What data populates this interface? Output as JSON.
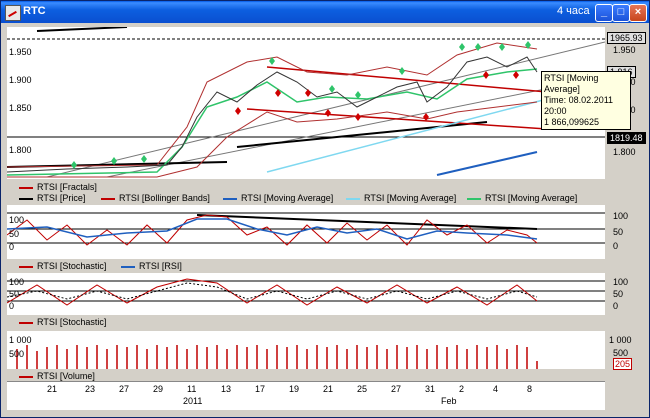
{
  "window": {
    "title": "RTC",
    "timeframe": "4 часа",
    "buttons": {
      "minimize": "_",
      "maximize": "□",
      "close": "×"
    }
  },
  "main_chart": {
    "price_scale": [
      "1.950",
      "1.900",
      "1.850",
      "1.800"
    ],
    "left_scale": [
      "1.950",
      "1.900",
      "1.850",
      "1.800"
    ],
    "tags": {
      "top": "1965.93",
      "bottom": "1819.48",
      "side": "1.916"
    },
    "tooltip": {
      "line1": "RTSI [Moving Average]",
      "line2": "Time: 08.02.2011 20:00",
      "line3": "1 866,099625"
    },
    "legend": [
      {
        "label": "RTSI [Fractals]",
        "color": "#c00000"
      },
      {
        "label": "RTSI [Price]",
        "color": "#000000"
      },
      {
        "label": "RTSI [Bollinger Bands]",
        "color": "#c00000"
      },
      {
        "label": "RTSI [Moving Average]",
        "color": "#1f5fbf"
      },
      {
        "label": "RTSI [Moving Average]",
        "color": "#7fd8f0"
      },
      {
        "label": "RTSI [Moving Average]",
        "color": "#2fc46a"
      }
    ]
  },
  "osc1": {
    "scale": [
      "100",
      "50",
      "0"
    ],
    "legend": [
      {
        "label": "RTSI [Stochastic]",
        "color": "#c00000"
      },
      {
        "label": "RTSI [RSI]",
        "color": "#1f5fbf"
      }
    ]
  },
  "osc2": {
    "scale": [
      "100",
      "50",
      "0"
    ],
    "legend": [
      {
        "label": "RTSI [Stochastic]",
        "color": "#c00000"
      }
    ]
  },
  "volume": {
    "scale": [
      "1 000",
      "500"
    ],
    "last_value": "205",
    "legend": [
      {
        "label": "RTSI [Volume]",
        "color": "#c00000"
      }
    ]
  },
  "dates": {
    "days": [
      "21",
      "23",
      "27",
      "29",
      "11",
      "13",
      "17",
      "19",
      "21",
      "25",
      "27",
      "31",
      "2",
      "4",
      "8"
    ],
    "year": "2011",
    "month": "Feb"
  }
}
